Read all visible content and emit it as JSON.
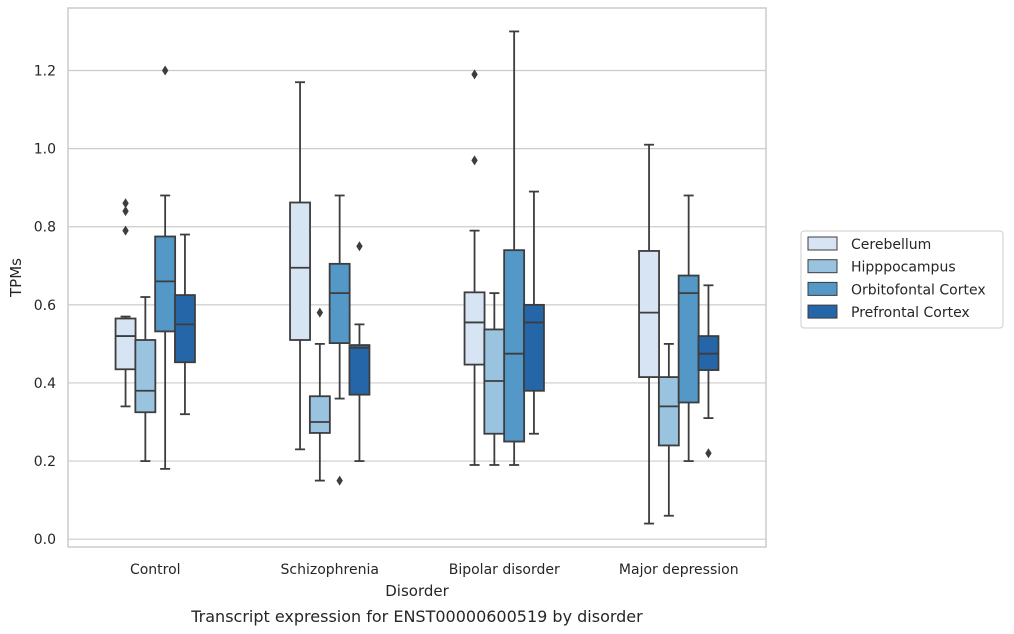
{
  "chart_data": {
    "type": "box",
    "caption": "Transcript expression for ENST00000600519 by disorder",
    "xlabel": "Disorder",
    "ylabel": "TPMs",
    "ylim": [
      -0.02,
      1.36
    ],
    "yticks": [
      0.0,
      0.2,
      0.4,
      0.6,
      0.8,
      1.0,
      1.2
    ],
    "ytick_labels": [
      "0.0",
      "0.2",
      "0.4",
      "0.6",
      "0.8",
      "1.0",
      "1.2"
    ],
    "categories": [
      "Control",
      "Schizophrenia",
      "Bipolar disorder",
      "Major depression"
    ],
    "grid": "horizontal",
    "legend_position": "right",
    "series": [
      {
        "name": "Cerebellum",
        "color": "#d6e4f3",
        "boxes": [
          {
            "whislo": 0.34,
            "q1": 0.435,
            "med": 0.52,
            "q3": 0.565,
            "whishi": 0.57,
            "fliers": [
              0.79,
              0.84,
              0.86
            ]
          },
          {
            "whislo": 0.23,
            "q1": 0.51,
            "med": 0.695,
            "q3": 0.862,
            "whishi": 1.17,
            "fliers": []
          },
          {
            "whislo": 0.19,
            "q1": 0.447,
            "med": 0.555,
            "q3": 0.632,
            "whishi": 0.79,
            "fliers": [
              0.97,
              1.19
            ]
          },
          {
            "whislo": 0.04,
            "q1": 0.415,
            "med": 0.58,
            "q3": 0.738,
            "whishi": 1.01,
            "fliers": []
          }
        ]
      },
      {
        "name": "Hipppocampus",
        "color": "#9ac3e0",
        "boxes": [
          {
            "whislo": 0.2,
            "q1": 0.325,
            "med": 0.38,
            "q3": 0.51,
            "whishi": 0.62,
            "fliers": []
          },
          {
            "whislo": 0.15,
            "q1": 0.272,
            "med": 0.3,
            "q3": 0.366,
            "whishi": 0.5,
            "fliers": [
              0.58
            ]
          },
          {
            "whislo": 0.19,
            "q1": 0.27,
            "med": 0.405,
            "q3": 0.537,
            "whishi": 0.63,
            "fliers": []
          },
          {
            "whislo": 0.06,
            "q1": 0.24,
            "med": 0.34,
            "q3": 0.415,
            "whishi": 0.5,
            "fliers": []
          }
        ]
      },
      {
        "name": "Orbitofontal Cortex",
        "color": "#5398c6",
        "boxes": [
          {
            "whislo": 0.18,
            "q1": 0.532,
            "med": 0.66,
            "q3": 0.775,
            "whishi": 0.88,
            "fliers": [
              1.2
            ]
          },
          {
            "whislo": 0.36,
            "q1": 0.502,
            "med": 0.63,
            "q3": 0.705,
            "whishi": 0.88,
            "fliers": [
              0.15
            ]
          },
          {
            "whislo": 0.19,
            "q1": 0.25,
            "med": 0.475,
            "q3": 0.74,
            "whishi": 1.3,
            "fliers": []
          },
          {
            "whislo": 0.2,
            "q1": 0.35,
            "med": 0.63,
            "q3": 0.675,
            "whishi": 0.88,
            "fliers": []
          }
        ]
      },
      {
        "name": "Prefrontal Cortex",
        "color": "#2466a8",
        "boxes": [
          {
            "whislo": 0.32,
            "q1": 0.453,
            "med": 0.55,
            "q3": 0.625,
            "whishi": 0.78,
            "fliers": []
          },
          {
            "whislo": 0.2,
            "q1": 0.37,
            "med": 0.49,
            "q3": 0.497,
            "whishi": 0.55,
            "fliers": [
              0.75
            ]
          },
          {
            "whislo": 0.27,
            "q1": 0.38,
            "med": 0.555,
            "q3": 0.6,
            "whishi": 0.89,
            "fliers": []
          },
          {
            "whislo": 0.31,
            "q1": 0.433,
            "med": 0.475,
            "q3": 0.52,
            "whishi": 0.65,
            "fliers": [
              0.22
            ]
          }
        ]
      }
    ]
  }
}
